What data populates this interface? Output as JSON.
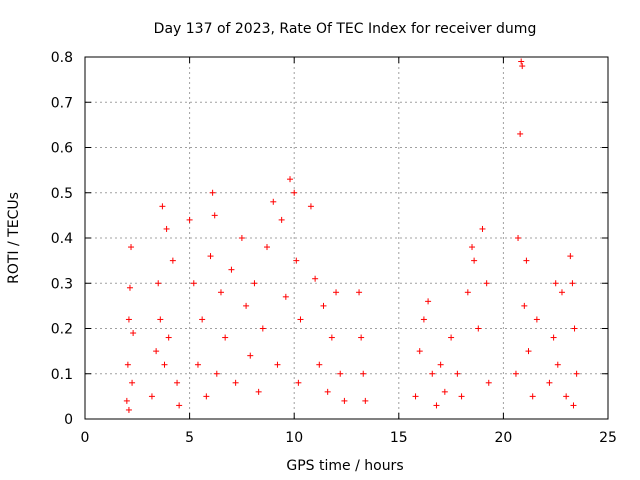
{
  "chart_data": {
    "type": "scatter",
    "title": "Day 137 of 2023, Rate Of TEC Index for receiver dumg",
    "xlabel": "GPS time / hours",
    "ylabel": "ROTI / TECUs",
    "xlim": [
      0,
      25
    ],
    "ylim": [
      0,
      0.8
    ],
    "xticks": [
      0,
      5,
      10,
      15,
      20,
      25
    ],
    "yticks": [
      0,
      0.1,
      0.2,
      0.3,
      0.4,
      0.5,
      0.6,
      0.7,
      0.8
    ],
    "xtick_labels": [
      "0",
      "5",
      "10",
      "15",
      "20",
      "25"
    ],
    "ytick_labels": [
      "0",
      "0.1",
      "0.2",
      "0.3",
      "0.4",
      "0.5",
      "0.6",
      "0.7",
      "0.8"
    ],
    "grid": true,
    "marker": "+",
    "color": "#ff0000",
    "series": [
      {
        "name": "ROTI",
        "points": [
          [
            2.0,
            0.04
          ],
          [
            2.05,
            0.12
          ],
          [
            2.1,
            0.22
          ],
          [
            2.15,
            0.29
          ],
          [
            2.2,
            0.38
          ],
          [
            2.25,
            0.08
          ],
          [
            2.3,
            0.19
          ],
          [
            2.1,
            0.02
          ],
          [
            3.2,
            0.05
          ],
          [
            3.4,
            0.15
          ],
          [
            3.5,
            0.3
          ],
          [
            3.6,
            0.22
          ],
          [
            3.7,
            0.47
          ],
          [
            3.8,
            0.12
          ],
          [
            3.9,
            0.42
          ],
          [
            4.0,
            0.18
          ],
          [
            4.2,
            0.35
          ],
          [
            4.4,
            0.08
          ],
          [
            4.5,
            0.03
          ],
          [
            5.0,
            0.44
          ],
          [
            5.2,
            0.3
          ],
          [
            5.4,
            0.12
          ],
          [
            5.6,
            0.22
          ],
          [
            5.8,
            0.05
          ],
          [
            6.0,
            0.36
          ],
          [
            6.1,
            0.5
          ],
          [
            6.2,
            0.45
          ],
          [
            6.3,
            0.1
          ],
          [
            6.5,
            0.28
          ],
          [
            6.7,
            0.18
          ],
          [
            7.0,
            0.33
          ],
          [
            7.2,
            0.08
          ],
          [
            7.5,
            0.4
          ],
          [
            7.7,
            0.25
          ],
          [
            7.9,
            0.14
          ],
          [
            8.1,
            0.3
          ],
          [
            8.3,
            0.06
          ],
          [
            8.5,
            0.2
          ],
          [
            8.7,
            0.38
          ],
          [
            9.0,
            0.48
          ],
          [
            9.2,
            0.12
          ],
          [
            9.4,
            0.44
          ],
          [
            9.6,
            0.27
          ],
          [
            9.8,
            0.53
          ],
          [
            10.0,
            0.5
          ],
          [
            10.1,
            0.35
          ],
          [
            10.2,
            0.08
          ],
          [
            10.3,
            0.22
          ],
          [
            10.8,
            0.47
          ],
          [
            11.0,
            0.31
          ],
          [
            11.2,
            0.12
          ],
          [
            11.4,
            0.25
          ],
          [
            11.6,
            0.06
          ],
          [
            11.8,
            0.18
          ],
          [
            12.0,
            0.28
          ],
          [
            12.2,
            0.1
          ],
          [
            12.4,
            0.04
          ],
          [
            13.1,
            0.28
          ],
          [
            13.2,
            0.18
          ],
          [
            13.3,
            0.1
          ],
          [
            13.4,
            0.04
          ],
          [
            15.8,
            0.05
          ],
          [
            16.0,
            0.15
          ],
          [
            16.2,
            0.22
          ],
          [
            16.4,
            0.26
          ],
          [
            16.6,
            0.1
          ],
          [
            16.8,
            0.03
          ],
          [
            17.0,
            0.12
          ],
          [
            17.2,
            0.06
          ],
          [
            17.5,
            0.18
          ],
          [
            17.8,
            0.1
          ],
          [
            18.0,
            0.05
          ],
          [
            18.3,
            0.28
          ],
          [
            18.5,
            0.38
          ],
          [
            18.6,
            0.35
          ],
          [
            18.8,
            0.2
          ],
          [
            19.0,
            0.42
          ],
          [
            19.2,
            0.3
          ],
          [
            19.3,
            0.08
          ],
          [
            20.6,
            0.1
          ],
          [
            20.7,
            0.4
          ],
          [
            20.8,
            0.63
          ],
          [
            20.85,
            0.79
          ],
          [
            20.9,
            0.78
          ],
          [
            21.0,
            0.25
          ],
          [
            21.1,
            0.35
          ],
          [
            21.2,
            0.15
          ],
          [
            21.4,
            0.05
          ],
          [
            21.6,
            0.22
          ],
          [
            22.2,
            0.08
          ],
          [
            22.4,
            0.18
          ],
          [
            22.5,
            0.3
          ],
          [
            22.6,
            0.12
          ],
          [
            22.8,
            0.28
          ],
          [
            23.0,
            0.05
          ],
          [
            23.2,
            0.36
          ],
          [
            23.3,
            0.3
          ],
          [
            23.4,
            0.2
          ],
          [
            23.5,
            0.1
          ],
          [
            23.35,
            0.03
          ]
        ]
      }
    ]
  }
}
